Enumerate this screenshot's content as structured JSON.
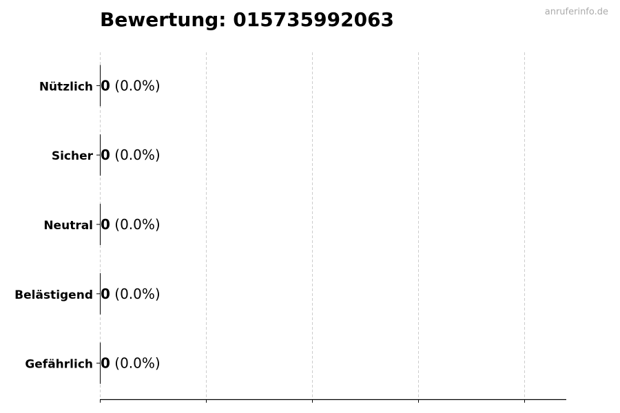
{
  "chart_data": {
    "type": "bar",
    "orientation": "horizontal",
    "title": "Bewertung: 015735992063",
    "categories": [
      "Nützlich",
      "Sicher",
      "Neutral",
      "Belästigend",
      "Gefährlich"
    ],
    "values": [
      0,
      0,
      0,
      0,
      0
    ],
    "value_labels": [
      "0",
      "0",
      "0",
      "0",
      "0"
    ],
    "percent_labels": [
      "(0.0%)",
      "(0.0%)",
      "(0.0%)",
      "(0.0%)",
      "(0.0%)"
    ],
    "xlabel": "",
    "ylabel": "",
    "x_tick_labels_shown": false,
    "grid": "x-dashed",
    "bar_edge_color": "#000000",
    "grid_color": "#cccccc"
  },
  "watermark": "anruferinfo.de"
}
